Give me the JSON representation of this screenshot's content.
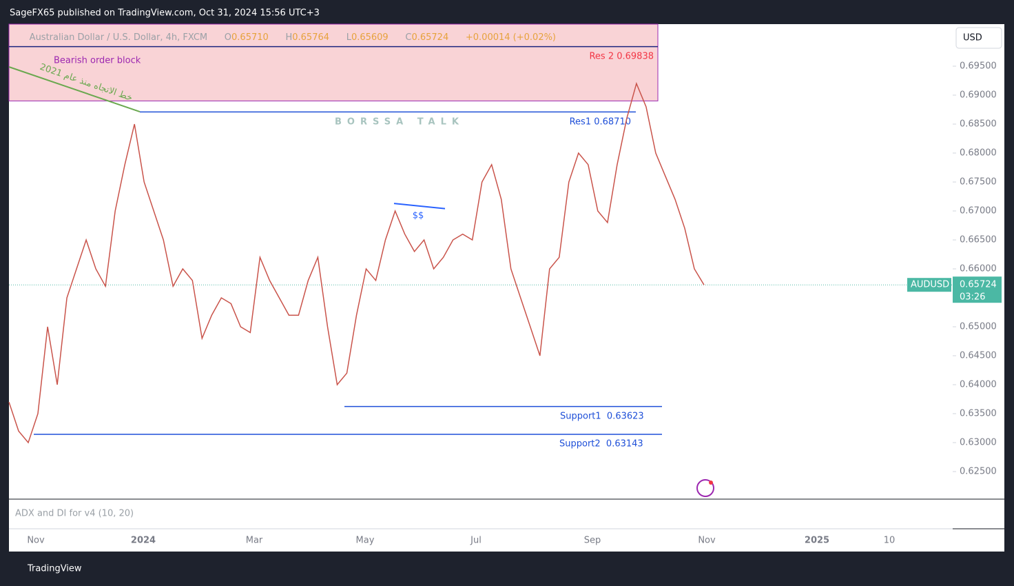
{
  "header": {
    "publisher": "SageFX65 published on TradingView.com, Oct 31, 2024 15:56 UTC+3",
    "brand": "TradingView"
  },
  "chart_data": {
    "type": "line",
    "symbol_title": "Australian Dollar / U.S. Dollar, 4h, FXCM",
    "ohlc": [
      {
        "label": "O",
        "value": 0.6571,
        "value_label": "0.65710"
      },
      {
        "label": "H",
        "value": 0.65764,
        "value_label": "0.65764"
      },
      {
        "label": "L",
        "value": 0.65609,
        "value_label": "0.65609"
      },
      {
        "label": "C",
        "value": 0.65724,
        "value_label": "0.65724"
      }
    ],
    "change": "+0.00014 (+0.02%)",
    "currency": "USD",
    "indicator": "ADX and DI for v4 (10, 20)",
    "watermark": "BORSSA TALK",
    "series": [
      {
        "name": "AUDUSD",
        "color": "#c9534a",
        "values": [
          0.637,
          0.632,
          0.63,
          0.635,
          0.65,
          0.64,
          0.655,
          0.66,
          0.665,
          0.66,
          0.657,
          0.67,
          0.678,
          0.685,
          0.675,
          0.67,
          0.665,
          0.657,
          0.66,
          0.658,
          0.648,
          0.652,
          0.655,
          0.654,
          0.65,
          0.649,
          0.662,
          0.658,
          0.655,
          0.652,
          0.652,
          0.658,
          0.662,
          0.65,
          0.64,
          0.642,
          0.652,
          0.66,
          0.658,
          0.665,
          0.67,
          0.666,
          0.663,
          0.665,
          0.66,
          0.662,
          0.665,
          0.666,
          0.665,
          0.675,
          0.678,
          0.672,
          0.66,
          0.655,
          0.65,
          0.645,
          0.66,
          0.662,
          0.675,
          0.68,
          0.678,
          0.67,
          0.668,
          0.678,
          0.686,
          0.692,
          0.688,
          0.68,
          0.676,
          0.672,
          0.667,
          0.66,
          0.65724
        ]
      }
    ],
    "last_price": {
      "value": 0.65724,
      "value_label": "0.65724",
      "countdown": "03:26",
      "color": "#4bb8a4"
    },
    "levels": [
      {
        "label": "Res 2 0.69838",
        "value": 0.69838,
        "color": "#f23645"
      },
      {
        "label": "Res1 0.68710",
        "value": 0.6871,
        "color": "#1e4fd8"
      },
      {
        "label": "Support1  0.63623",
        "value": 0.63623,
        "color": "#1e4fd8"
      },
      {
        "label": "Support2  0.63143",
        "value": 0.63143,
        "color": "#1e4fd8"
      }
    ],
    "zone": {
      "label": "Bearish order block",
      "values": [
        0.689,
        0.69838
      ],
      "color": "#f8c8cc"
    },
    "trendline": {
      "label": "خط الاتجاه منذ عام 2021",
      "values": [
        0.69488,
        0.68714
      ],
      "color": "#6aa84f"
    },
    "liquidity": {
      "label": "$$",
      "values": [
        0.6713,
        0.6704
      ],
      "color": "#2962ff"
    },
    "ylim": [
      0.62036,
      0.70226
    ],
    "yticks": [
      {
        "value": 0.695,
        "label": "0.69500"
      },
      {
        "value": 0.69,
        "label": "0.69000"
      },
      {
        "value": 0.685,
        "label": "0.68500"
      },
      {
        "value": 0.68,
        "label": "0.68000"
      },
      {
        "value": 0.675,
        "label": "0.67500"
      },
      {
        "value": 0.67,
        "label": "0.67000"
      },
      {
        "value": 0.665,
        "label": "0.66500"
      },
      {
        "value": 0.66,
        "label": "0.66000"
      },
      {
        "value": 0.655,
        "label": "0.65500"
      },
      {
        "value": 0.65,
        "label": "0.65000"
      },
      {
        "value": 0.645,
        "label": "0.64500"
      },
      {
        "value": 0.64,
        "label": "0.64000"
      },
      {
        "value": 0.635,
        "label": "0.63500"
      },
      {
        "value": 0.63,
        "label": "0.63000"
      },
      {
        "value": 0.625,
        "label": "0.62500"
      }
    ],
    "xticks": [
      "Nov",
      "2024",
      "Mar",
      "May",
      "Jul",
      "Sep",
      "Nov",
      "2025",
      "10"
    ]
  }
}
